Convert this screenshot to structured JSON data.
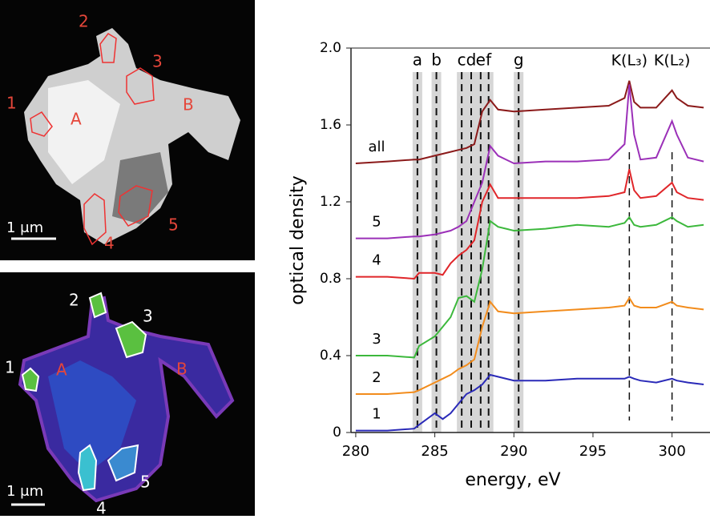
{
  "images": [
    {
      "labels": [
        "1",
        "2",
        "3",
        "4",
        "5",
        "A",
        "B"
      ],
      "scale_bar": "1 μm"
    },
    {
      "labels": [
        "1",
        "2",
        "3",
        "4",
        "5",
        "A",
        "B"
      ],
      "scale_bar": "1 μm"
    }
  ],
  "chart_data": {
    "type": "line",
    "xlabel": "energy,  eV",
    "ylabel": "optical density",
    "xlim": [
      279.7,
      302.4
    ],
    "ylim": [
      0,
      2
    ],
    "xticks": [
      280,
      285,
      290,
      295,
      300
    ],
    "yticks": [
      0,
      0.4,
      0.8,
      1.2,
      1.6,
      {
        "value": 2,
        "label": "2.0"
      }
    ],
    "x": [
      280,
      282,
      283.7,
      284,
      285,
      285.5,
      286,
      286.5,
      287,
      287.5,
      288,
      288.5,
      289,
      290,
      292,
      294,
      296,
      297,
      297.3,
      297.6,
      298,
      299,
      300,
      300.3,
      301,
      302
    ],
    "series": [
      {
        "name": "all",
        "color": "#8b1a1a",
        "values": [
          1.4,
          1.41,
          1.42,
          1.42,
          1.44,
          1.45,
          1.46,
          1.47,
          1.48,
          1.5,
          1.67,
          1.73,
          1.68,
          1.67,
          1.68,
          1.69,
          1.7,
          1.74,
          1.83,
          1.72,
          1.69,
          1.69,
          1.78,
          1.74,
          1.7,
          1.69
        ]
      },
      {
        "name": "5",
        "color": "#9b30b8",
        "values": [
          1.01,
          1.01,
          1.02,
          1.02,
          1.03,
          1.04,
          1.05,
          1.07,
          1.1,
          1.2,
          1.3,
          1.49,
          1.44,
          1.4,
          1.41,
          1.41,
          1.42,
          1.5,
          1.81,
          1.55,
          1.42,
          1.43,
          1.62,
          1.55,
          1.43,
          1.41
        ]
      },
      {
        "name": "4",
        "color": "#e0262a",
        "values": [
          0.81,
          0.81,
          0.8,
          0.83,
          0.83,
          0.82,
          0.88,
          0.92,
          0.95,
          1.0,
          1.2,
          1.29,
          1.22,
          1.22,
          1.22,
          1.22,
          1.23,
          1.25,
          1.37,
          1.26,
          1.22,
          1.23,
          1.3,
          1.25,
          1.22,
          1.21
        ]
      },
      {
        "name": "3",
        "color": "#3cb83c",
        "values": [
          0.4,
          0.4,
          0.39,
          0.45,
          0.5,
          0.55,
          0.6,
          0.7,
          0.71,
          0.68,
          0.85,
          1.1,
          1.07,
          1.05,
          1.06,
          1.08,
          1.07,
          1.09,
          1.12,
          1.08,
          1.07,
          1.08,
          1.12,
          1.1,
          1.07,
          1.08
        ]
      },
      {
        "name": "2",
        "color": "#f28c1c",
        "values": [
          0.2,
          0.2,
          0.21,
          0.22,
          0.26,
          0.28,
          0.3,
          0.33,
          0.35,
          0.38,
          0.55,
          0.68,
          0.63,
          0.62,
          0.63,
          0.64,
          0.65,
          0.66,
          0.7,
          0.66,
          0.65,
          0.65,
          0.68,
          0.66,
          0.65,
          0.64
        ]
      },
      {
        "name": "1",
        "color": "#2a2ab8",
        "values": [
          0.01,
          0.01,
          0.02,
          0.04,
          0.1,
          0.07,
          0.1,
          0.15,
          0.2,
          0.22,
          0.25,
          0.3,
          0.29,
          0.27,
          0.27,
          0.28,
          0.28,
          0.28,
          0.29,
          0.28,
          0.27,
          0.26,
          0.28,
          0.27,
          0.26,
          0.25
        ]
      }
    ],
    "markers": [
      {
        "label": "a",
        "x": 283.9
      },
      {
        "label": "b",
        "x": 285.1
      },
      {
        "label": "c",
        "x": 286.7
      },
      {
        "label": "d",
        "x": 287.3
      },
      {
        "label": "e",
        "x": 287.9
      },
      {
        "label": "f",
        "x": 288.4
      },
      {
        "label": "g",
        "x": 290.3
      }
    ],
    "peaks": [
      {
        "label": "K(L₃)",
        "x": 297.3
      },
      {
        "label": "K(L₂)",
        "x": 300.0
      }
    ]
  }
}
